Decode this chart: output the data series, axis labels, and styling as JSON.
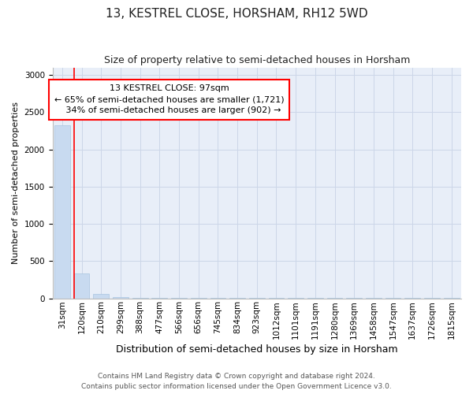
{
  "title": "13, KESTREL CLOSE, HORSHAM, RH12 5WD",
  "subtitle": "Size of property relative to semi-detached houses in Horsham",
  "xlabel": "Distribution of semi-detached houses by size in Horsham",
  "ylabel": "Number of semi-detached properties",
  "property_label": "13 KESTREL CLOSE: 97sqm",
  "pct_smaller": 65,
  "pct_larger": 34,
  "n_smaller": 1721,
  "n_larger": 902,
  "bar_color": "#c8daf0",
  "bar_edge_color": "#a8c4e0",
  "annotation_line_color": "red",
  "categories": [
    "31sqm",
    "120sqm",
    "210sqm",
    "299sqm",
    "388sqm",
    "477sqm",
    "566sqm",
    "656sqm",
    "745sqm",
    "834sqm",
    "923sqm",
    "1012sqm",
    "1101sqm",
    "1191sqm",
    "1280sqm",
    "1369sqm",
    "1458sqm",
    "1547sqm",
    "1637sqm",
    "1726sqm",
    "1815sqm"
  ],
  "values": [
    2320,
    335,
    55,
    12,
    8,
    5,
    3,
    2,
    2,
    1,
    1,
    1,
    1,
    1,
    1,
    1,
    1,
    1,
    1,
    1,
    1
  ],
  "ylim": [
    0,
    3100
  ],
  "yticks": [
    0,
    500,
    1000,
    1500,
    2000,
    2500,
    3000
  ],
  "property_bin_index": 1,
  "footer_line1": "Contains HM Land Registry data © Crown copyright and database right 2024.",
  "footer_line2": "Contains public sector information licensed under the Open Government Licence v3.0.",
  "background_color": "#ffffff",
  "axes_facecolor": "#e8eef8",
  "grid_color": "#ccd6e8",
  "annotation_box_color": "#ffffff",
  "annotation_box_edge": "red",
  "title_fontsize": 11,
  "subtitle_fontsize": 9,
  "ylabel_fontsize": 8,
  "xlabel_fontsize": 9,
  "tick_fontsize": 7.5,
  "footer_fontsize": 6.5
}
